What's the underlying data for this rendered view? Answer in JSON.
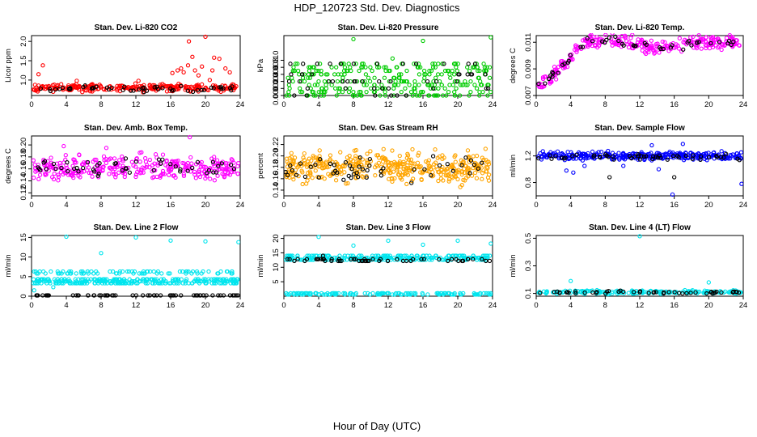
{
  "figure": {
    "title": "HDP_120723  Std. Dev. Diagnostics",
    "xlabel": "Hour of Day (UTC)"
  },
  "chart_data": [
    {
      "type": "scatter",
      "title": "Stan. Dev. Li-820 CO2",
      "ylabel": "Licor ppm",
      "xlim": [
        0,
        24
      ],
      "ylim": [
        0.6,
        2.15
      ],
      "xticks": [
        0,
        4,
        8,
        12,
        16,
        20,
        24
      ],
      "yticks": [
        {
          "v": 1.0,
          "t": "1.0"
        },
        {
          "v": 1.5,
          "t": "1.5"
        },
        {
          "v": 2.0,
          "t": "2.0"
        }
      ],
      "series": [
        {
          "color": "#ff0000",
          "n": 260,
          "base": 0.8,
          "spread": 0.08,
          "spikes": [
            [
              0.8,
              1.15
            ],
            [
              1.3,
              1.38
            ],
            [
              5.2,
              0.98
            ],
            [
              12.3,
              0.98
            ],
            [
              16.2,
              1.18
            ],
            [
              16.8,
              1.25
            ],
            [
              17.2,
              1.3
            ],
            [
              17.5,
              1.2
            ],
            [
              18.0,
              1.38
            ],
            [
              18.5,
              1.6
            ],
            [
              18.8,
              1.25
            ],
            [
              19.2,
              1.12
            ],
            [
              20.0,
              2.12
            ],
            [
              20.5,
              1.0
            ],
            [
              21.0,
              1.58
            ],
            [
              21.6,
              1.55
            ],
            [
              22.3,
              1.3
            ],
            [
              22.8,
              1.2
            ],
            [
              18.1,
              2.0
            ],
            [
              19.6,
              1.35
            ],
            [
              20.8,
              1.25
            ]
          ]
        },
        {
          "color": "#000000",
          "n": 50,
          "base": 0.78,
          "spread": 0.06,
          "spikes": []
        }
      ]
    },
    {
      "type": "scatter",
      "title": "Stan. Dev. Li-820 Pressure",
      "ylabel": "kPa",
      "xlim": [
        0,
        24
      ],
      "ylim": [
        0,
        0.017
      ],
      "xticks": [
        0,
        4,
        8,
        12,
        16,
        20,
        24
      ],
      "yticks": [
        {
          "v": 0,
          "t": "0.000"
        },
        {
          "v": 0.002,
          "t": "0.002"
        },
        {
          "v": 0.004,
          "t": "0.004"
        },
        {
          "v": 0.006,
          "t": "0.006"
        },
        {
          "v": 0.008,
          "t": "0.008"
        },
        {
          "v": 0.01,
          "t": "0.010"
        }
      ],
      "series": [
        {
          "color": "#00cc00",
          "n": 300,
          "levels": [
            0,
            0.001,
            0.002,
            0.003,
            0.004,
            0.005,
            0.006,
            0.007,
            0.008,
            0.009
          ],
          "spikes": [
            [
              8.0,
              0.016
            ],
            [
              16.0,
              0.0155
            ],
            [
              23.8,
              0.0165
            ],
            [
              12.5,
              0.0105
            ]
          ]
        },
        {
          "color": "#000000",
          "n": 50,
          "levels": [
            0,
            0.002,
            0.004,
            0.006,
            0.009
          ],
          "spikes": []
        }
      ]
    },
    {
      "type": "scatter",
      "title": "Stan. Dev. Li-820 Temp.",
      "ylabel": "degrees C",
      "xlim": [
        0,
        24
      ],
      "ylim": [
        0.007,
        0.0115
      ],
      "xticks": [
        0,
        4,
        8,
        12,
        16,
        20,
        24
      ],
      "yticks": [
        {
          "v": 0.007,
          "t": "0.007"
        },
        {
          "v": 0.009,
          "t": "0.009"
        },
        {
          "v": 0.011,
          "t": "0.011"
        }
      ],
      "trend": [
        [
          0,
          0.0075
        ],
        [
          2,
          0.0085
        ],
        [
          4,
          0.0098
        ],
        [
          5,
          0.0108
        ],
        [
          8,
          0.0112
        ],
        [
          12,
          0.0108
        ],
        [
          14,
          0.0105
        ],
        [
          18,
          0.0109
        ],
        [
          21,
          0.011
        ],
        [
          24,
          0.011
        ]
      ],
      "series": [
        {
          "color": "#ff00ff",
          "n": 300,
          "spread": 0.00045,
          "spikes": []
        },
        {
          "color": "#000000",
          "n": 50,
          "spread": 0.0003,
          "spikes": []
        }
      ]
    },
    {
      "type": "scatter",
      "title": "Stan. Dev. Amb. Box Temp.",
      "ylabel": "degrees C",
      "xlim": [
        0,
        24
      ],
      "ylim": [
        0.115,
        0.215
      ],
      "xticks": [
        0,
        4,
        8,
        12,
        16,
        20,
        24
      ],
      "yticks": [
        {
          "v": 0.12,
          "t": "0.12"
        },
        {
          "v": 0.14,
          "t": "0.14"
        },
        {
          "v": 0.16,
          "t": "0.16"
        },
        {
          "v": 0.18,
          "t": "0.18"
        },
        {
          "v": 0.2,
          "t": "0.20"
        }
      ],
      "series": [
        {
          "color": "#ff00ff",
          "n": 320,
          "base": 0.162,
          "spread": 0.017,
          "spikes": [
            [
              18.2,
              0.213
            ],
            [
              3.7,
              0.198
            ],
            [
              8.6,
              0.195
            ]
          ]
        },
        {
          "color": "#000000",
          "n": 50,
          "base": 0.163,
          "spread": 0.013,
          "spikes": []
        }
      ]
    },
    {
      "type": "scatter",
      "title": "Stan. Dev. Gas Stream RH",
      "ylabel": "percent",
      "xlim": [
        0,
        24
      ],
      "ylim": [
        0.13,
        0.235
      ],
      "xticks": [
        0,
        4,
        8,
        12,
        16,
        20,
        24
      ],
      "yticks": [
        {
          "v": 0.14,
          "t": "0.14"
        },
        {
          "v": 0.16,
          "t": "0.16"
        },
        {
          "v": 0.18,
          "t": "0.18"
        },
        {
          "v": 0.2,
          "t": "0.20"
        },
        {
          "v": 0.22,
          "t": "0.22"
        }
      ],
      "series": [
        {
          "color": "#ffa500",
          "n": 420,
          "base": 0.18,
          "spread": 0.023,
          "spikes": []
        },
        {
          "color": "#000000",
          "n": 50,
          "base": 0.18,
          "spread": 0.018,
          "spikes": []
        }
      ]
    },
    {
      "type": "scatter",
      "title": "Stan. Dev. Sample Flow",
      "ylabel": "ml/min",
      "xlim": [
        0,
        24
      ],
      "ylim": [
        0.6,
        1.5
      ],
      "xticks": [
        0,
        4,
        8,
        12,
        16,
        20,
        24
      ],
      "yticks": [
        {
          "v": 0.8,
          "t": "0.8"
        },
        {
          "v": 1.2,
          "t": "1.2"
        }
      ],
      "series": [
        {
          "color": "#0000ff",
          "n": 320,
          "base": 1.2,
          "spread": 0.05,
          "spikes": [
            [
              15.8,
              0.62
            ],
            [
              23.8,
              0.78
            ],
            [
              3.5,
              0.98
            ],
            [
              4.3,
              0.95
            ],
            [
              14.2,
              1.0
            ],
            [
              17.0,
              1.38
            ],
            [
              5.6,
              1.05
            ],
            [
              10.1,
              1.05
            ],
            [
              13.4,
              1.36
            ]
          ]
        },
        {
          "color": "#000000",
          "n": 50,
          "base": 1.18,
          "spread": 0.05,
          "spikes": [
            [
              16.0,
              0.88
            ],
            [
              8.5,
              0.88
            ]
          ]
        }
      ]
    },
    {
      "type": "scatter",
      "title": "Stan. Dev. Line 2 Flow",
      "ylabel": "ml/min",
      "xlim": [
        0,
        24
      ],
      "ylim": [
        0,
        15.5
      ],
      "xticks": [
        0,
        4,
        8,
        12,
        16,
        20,
        24
      ],
      "yticks": [
        {
          "v": 0,
          "t": "0"
        },
        {
          "v": 5,
          "t": "5"
        },
        {
          "v": 10,
          "t": "10"
        },
        {
          "v": 15,
          "t": "15"
        }
      ],
      "series": [
        {
          "color": "#00e5ee",
          "n": 280,
          "levels": [
            3.3,
            3.8,
            4.3
          ],
          "spikes": [
            [
              4.0,
              15.2
            ],
            [
              8.0,
              11.0
            ],
            [
              12.0,
              15.0
            ],
            [
              16.0,
              14.2
            ],
            [
              20.0,
              14.0
            ],
            [
              23.8,
              13.8
            ],
            [
              0.3,
              1.5
            ],
            [
              2.5,
              2.3
            ]
          ]
        },
        {
          "color": "#00e5ee",
          "n": 80,
          "levels": [
            5.8,
            6.3
          ],
          "spikes": []
        },
        {
          "color": "#000000",
          "n": 60,
          "levels": [
            0.2
          ],
          "spikes": []
        }
      ]
    },
    {
      "type": "scatter",
      "title": "Stan. Dev. Line 3 Flow",
      "ylabel": "ml/min",
      "xlim": [
        0,
        24
      ],
      "ylim": [
        0,
        21
      ],
      "xticks": [
        0,
        4,
        8,
        12,
        16,
        20,
        24
      ],
      "yticks": [
        {
          "v": 5,
          "t": "5"
        },
        {
          "v": 10,
          "t": "10"
        },
        {
          "v": 15,
          "t": "15"
        },
        {
          "v": 20,
          "t": "20"
        }
      ],
      "series": [
        {
          "color": "#00e5ee",
          "n": 260,
          "levels": [
            12.6,
            13.3,
            14.0
          ],
          "spikes": [
            [
              4.0,
              20.5
            ],
            [
              8.0,
              17.5
            ],
            [
              12.0,
              19.2
            ],
            [
              16.0,
              17.8
            ],
            [
              20.0,
              19.2
            ],
            [
              23.8,
              18.2
            ]
          ]
        },
        {
          "color": "#00e5ee",
          "n": 140,
          "levels": [
            0.6,
            1.0
          ],
          "spikes": []
        },
        {
          "color": "#000000",
          "n": 55,
          "levels": [
            12.2,
            12.8
          ],
          "spikes": [
            [
              4.5,
              14.0
            ]
          ]
        }
      ]
    },
    {
      "type": "scatter",
      "title": "Stan. Dev. Line 4 (LT) Flow",
      "ylabel": "ml/min",
      "xlim": [
        0,
        24
      ],
      "ylim": [
        0.08,
        0.52
      ],
      "xticks": [
        0,
        4,
        8,
        12,
        16,
        20,
        24
      ],
      "yticks": [
        {
          "v": 0.1,
          "t": "0.1"
        },
        {
          "v": 0.3,
          "t": "0.3"
        },
        {
          "v": 0.5,
          "t": "0.5"
        }
      ],
      "series": [
        {
          "color": "#00e5ee",
          "n": 200,
          "base": 0.11,
          "spread": 0.01,
          "spikes": [
            [
              12.0,
              0.515
            ],
            [
              4.0,
              0.19
            ],
            [
              20.0,
              0.18
            ]
          ]
        },
        {
          "color": "#000000",
          "n": 50,
          "base": 0.108,
          "spread": 0.008,
          "spikes": []
        }
      ]
    }
  ]
}
